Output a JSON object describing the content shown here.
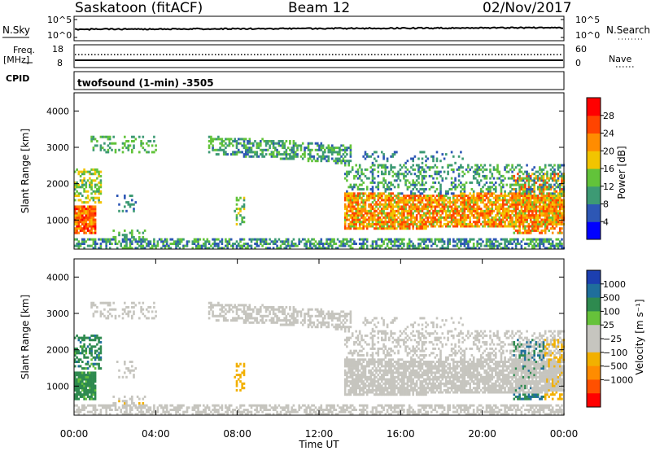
{
  "header": {
    "station": "Saskatoon (fitACF)",
    "beam": "Beam 12",
    "date": "02/Nov/2017"
  },
  "top_panels": {
    "nsky_label": "N.Sky",
    "nsky_ticks": [
      "10^5",
      "10^0"
    ],
    "nsearch_label": "N.Search",
    "nsearch_ticks": [
      "10^5",
      "10^0"
    ],
    "freq_label_1": "Freq.",
    "freq_label_2": "[MHz]",
    "freq_ticks": [
      "18",
      "8"
    ],
    "nave_label": "Nave",
    "nave_ticks": [
      "60",
      "0"
    ],
    "cpid_label": "CPID",
    "cpid_text": "twofsound (1-min) -3505"
  },
  "colors": {
    "power_scale": [
      "#0000ff",
      "#2d57b5",
      "#3d9a74",
      "#62c33a",
      "#f2c400",
      "#ff8c00",
      "#ff4400",
      "#ff0000"
    ],
    "velocity_scale": [
      "#1c3fb0",
      "#1f6e9b",
      "#2e8a4f",
      "#66c23a",
      "#c6c5bf",
      "#c6c5bf",
      "#f2b000",
      "#ff8c00",
      "#ff5000",
      "#ff0000"
    ]
  },
  "chart_data": [
    {
      "type": "heatmap",
      "name": "power",
      "ylabel": "Slant Range [km]",
      "yticks": [
        1000,
        2000,
        3000,
        4000
      ],
      "ylim": [
        200,
        4500
      ],
      "xlim": [
        0,
        24
      ],
      "colorbar_label": "Power [dB]",
      "colorbar_ticks": [
        "4",
        "8",
        "12",
        "16",
        "20",
        "24",
        "28"
      ],
      "color_range": [
        0,
        32
      ]
    },
    {
      "type": "heatmap",
      "name": "velocity",
      "ylabel": "Slant Range [km]",
      "yticks": [
        1000,
        2000,
        3000,
        4000
      ],
      "ylim": [
        200,
        4500
      ],
      "xlim": [
        0,
        24
      ],
      "xlabel": "Time UT",
      "xticks": [
        "00:00",
        "04:00",
        "08:00",
        "12:00",
        "16:00",
        "20:00",
        "00:00"
      ],
      "colorbar_label": "Velocity [m s⁻¹]",
      "colorbar_ticks": [
        "1000",
        "500",
        "100",
        "25",
        "−25",
        "−100",
        "−500",
        "−1000"
      ]
    }
  ]
}
